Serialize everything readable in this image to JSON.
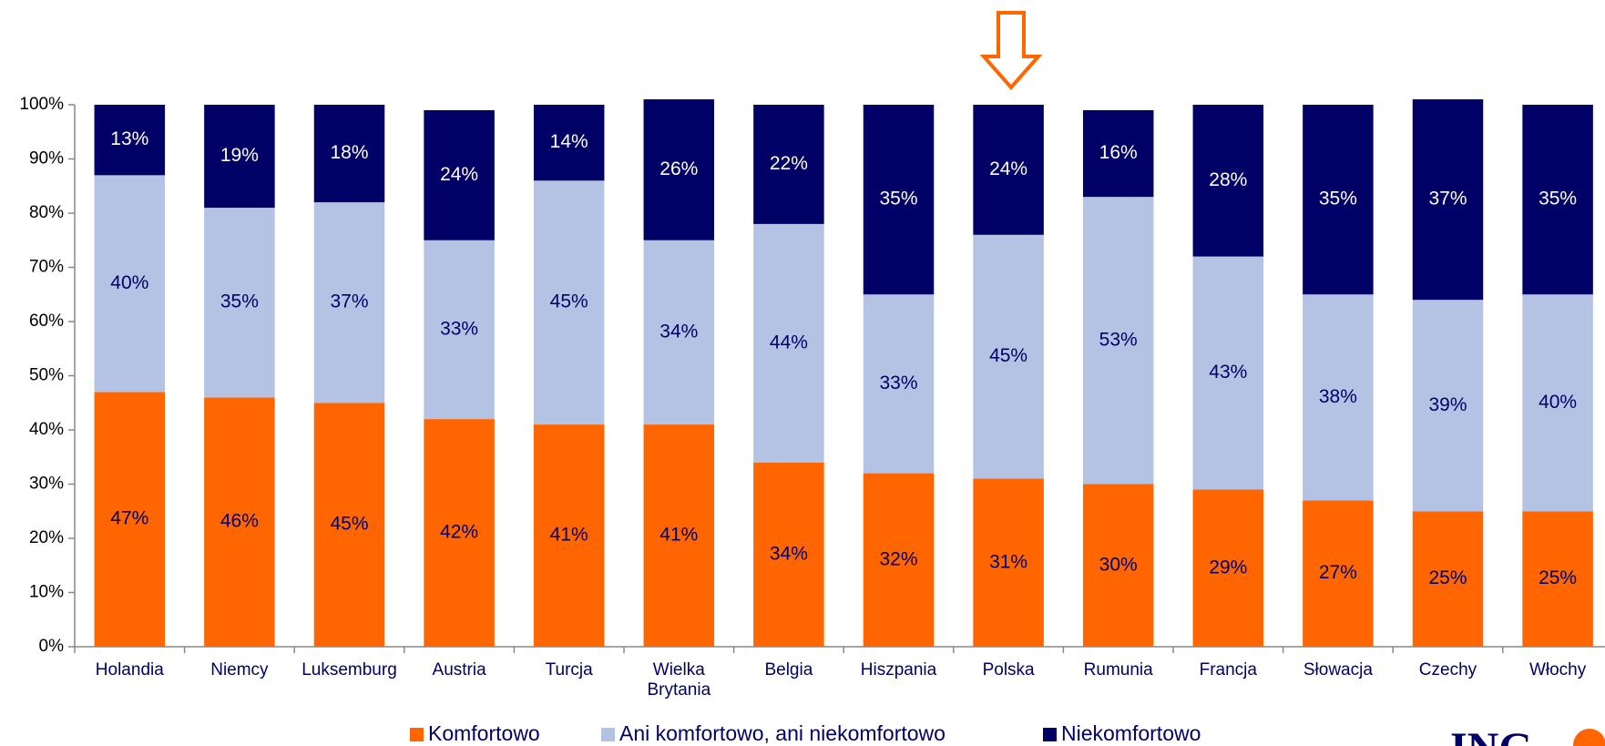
{
  "chart_data": {
    "type": "stacked_bar",
    "categories": [
      "Holandia",
      "Niemcy",
      "Luksemburg",
      "Austria",
      "Turcja",
      "Wielka Brytania",
      "Belgia",
      "Hiszpania",
      "Polska",
      "Rumunia",
      "Francja",
      "Słowacja",
      "Czechy",
      "Włochy"
    ],
    "series": [
      {
        "name": "Komfortowo",
        "color": "#ff6600",
        "values": [
          47,
          46,
          45,
          42,
          41,
          41,
          34,
          32,
          31,
          30,
          29,
          27,
          25,
          25
        ],
        "value_labels": [
          "47%",
          "46%",
          "45%",
          "42%",
          "41%",
          "41%",
          "34%",
          "32%",
          "31%",
          "30%",
          "29%",
          "27%",
          "25%",
          "25%"
        ]
      },
      {
        "name": "Ani komfortowo, ani niekomfortowo",
        "color": "#b4c3e3",
        "values": [
          40,
          35,
          37,
          33,
          45,
          34,
          44,
          33,
          45,
          53,
          43,
          38,
          39,
          40
        ],
        "value_labels": [
          "40%",
          "35%",
          "37%",
          "33%",
          "45%",
          "34%",
          "44%",
          "33%",
          "45%",
          "53%",
          "43%",
          "38%",
          "39%",
          "40%"
        ]
      },
      {
        "name": "Niekomfortowo",
        "color": "#000066",
        "values": [
          13,
          19,
          18,
          24,
          14,
          26,
          22,
          35,
          24,
          16,
          28,
          35,
          37,
          35
        ],
        "value_labels": [
          "13%",
          "19%",
          "18%",
          "24%",
          "14%",
          "26%",
          "22%",
          "35%",
          "24%",
          "16%",
          "28%",
          "35%",
          "37%",
          "35%"
        ]
      }
    ],
    "ylim": [
      0,
      100
    ],
    "yticks": [
      {
        "value": 0,
        "label": "0%"
      },
      {
        "value": 10,
        "label": "10%"
      },
      {
        "value": 20,
        "label": "20%"
      },
      {
        "value": 30,
        "label": "30%"
      },
      {
        "value": 40,
        "label": "40%"
      },
      {
        "value": 50,
        "label": "50%"
      },
      {
        "value": 60,
        "label": "60%"
      },
      {
        "value": 70,
        "label": "70%"
      },
      {
        "value": 80,
        "label": "80%"
      },
      {
        "value": 90,
        "label": "90%"
      },
      {
        "value": 100,
        "label": "100%"
      }
    ],
    "grid": false,
    "legend": "bottom"
  },
  "logo": "ING"
}
